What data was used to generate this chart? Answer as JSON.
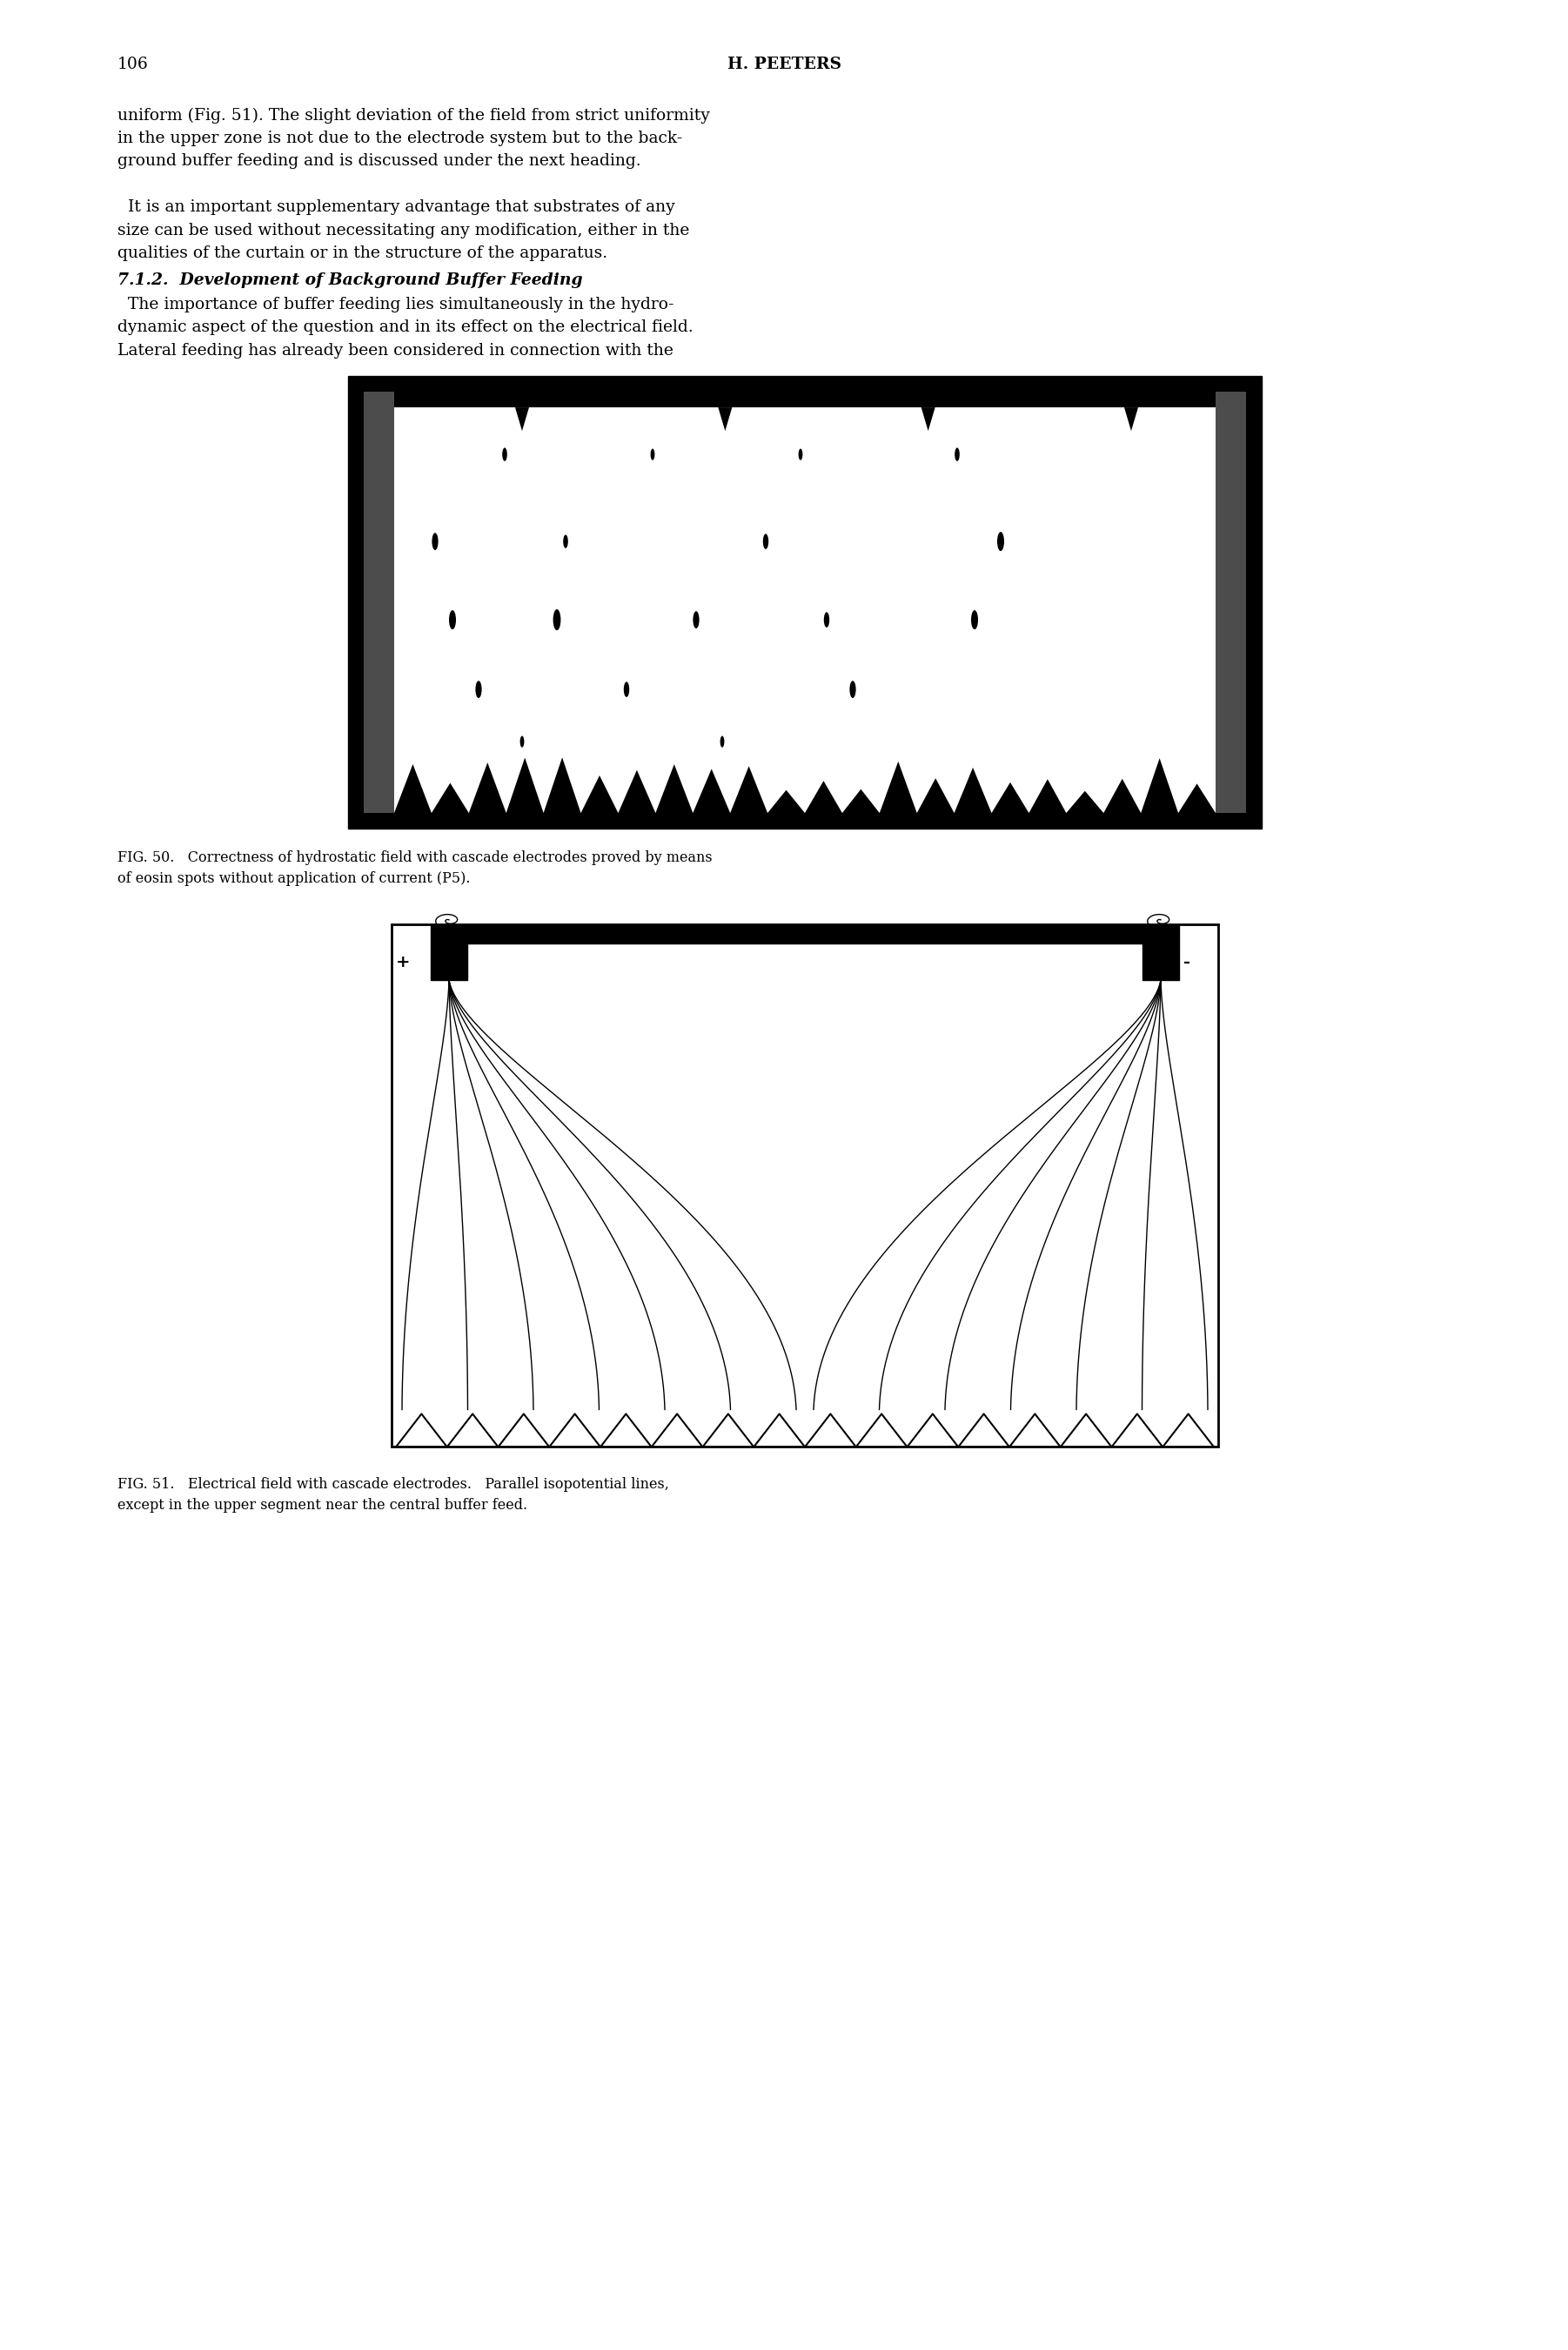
{
  "page_number": "106",
  "header_center": "H. PEETERS",
  "body_lines": [
    "uniform (Fig. 51). The slight deviation of the field from strict uniformity",
    "in the upper zone is not due to the electrode system but to the back-",
    "ground buffer feeding and is discussed under the next heading.",
    "",
    "  It is an important supplementary advantage that substrates of any",
    "size can be used without necessitating any modification, either in the",
    "qualities of the curtain or in the structure of the apparatus."
  ],
  "section_heading": "7.1.2.  Development of Background Buffer Feeding",
  "body2_lines": [
    "  The importance of buffer feeding lies simultaneously in the hydro-",
    "dynamic aspect of the question and in its effect on the electrical field.",
    "Lateral feeding has already been considered in connection with the"
  ],
  "cap50_line1": "FIG. 50.   Correctness of hydrostatic field with cascade electrodes proved by means",
  "cap50_line2": "of eosin spots without application of current (P5).",
  "cap51_line1": "FIG. 51.   Electrical field with cascade electrodes.   Parallel isopotential lines,",
  "cap51_line2": "except in the upper segment near the central buffer feed.",
  "bg": "#ffffff",
  "fg": "#000000"
}
